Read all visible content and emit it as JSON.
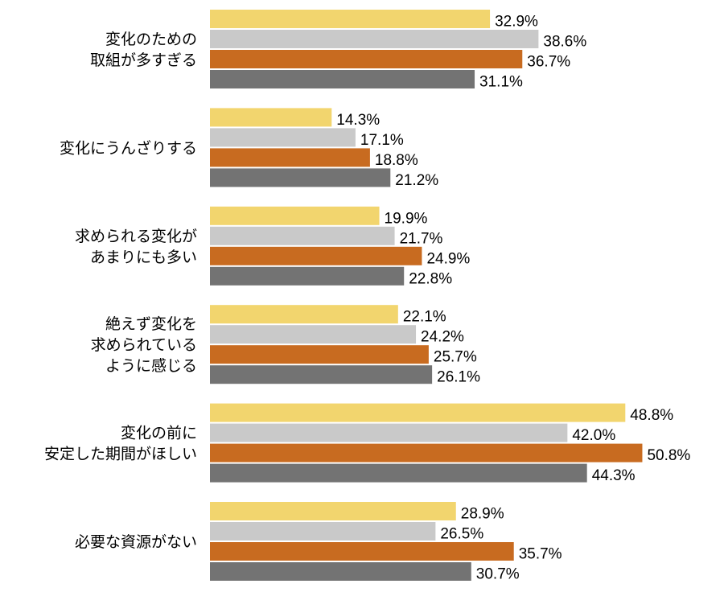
{
  "chart_data": {
    "type": "bar",
    "orientation": "horizontal",
    "categories": [
      [
        "変化のための",
        "取組が多すぎる"
      ],
      [
        "変化にうんざりする"
      ],
      [
        "求められる変化が",
        "あまりにも多い"
      ],
      [
        "絶えず変化を",
        "求められている",
        "ように感じる"
      ],
      [
        "変化の前に",
        "安定した期間がほしい"
      ],
      [
        "必要な資源がない"
      ]
    ],
    "series": [
      {
        "color": "#F2D56E",
        "values": [
          32.9,
          14.3,
          19.9,
          22.1,
          48.8,
          28.9
        ]
      },
      {
        "color": "#C9C9C9",
        "values": [
          38.6,
          17.1,
          21.7,
          24.2,
          42.0,
          26.5
        ]
      },
      {
        "color": "#C86B20",
        "values": [
          36.7,
          18.8,
          24.9,
          25.7,
          50.8,
          35.7
        ]
      },
      {
        "color": "#737373",
        "values": [
          31.1,
          21.2,
          22.8,
          26.1,
          44.3,
          30.7
        ]
      }
    ],
    "value_suffix": "%",
    "xlim": [
      0,
      60
    ],
    "grid": false,
    "legend": "none"
  }
}
